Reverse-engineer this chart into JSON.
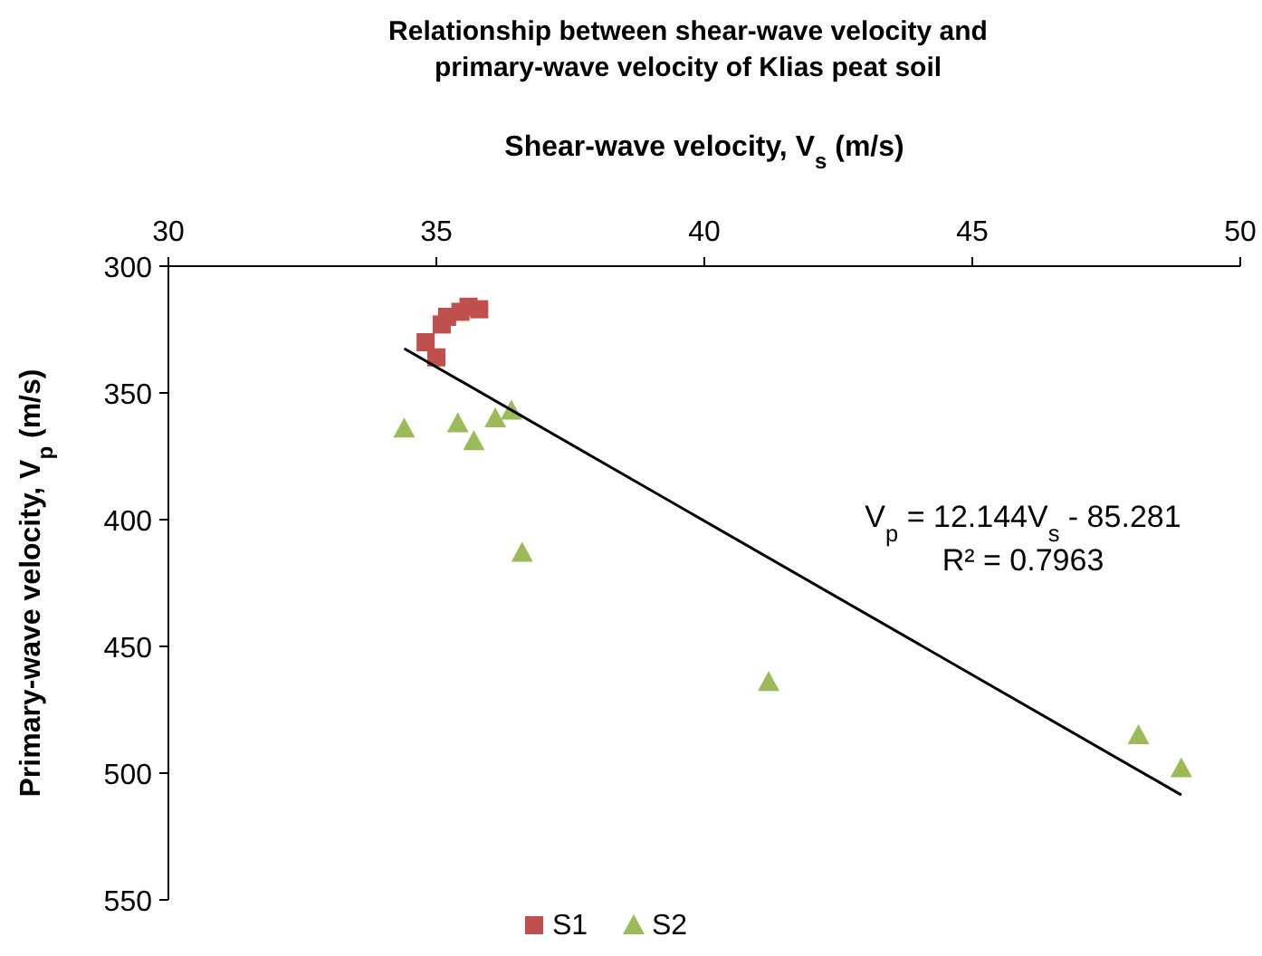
{
  "chart_data": {
    "type": "scatter",
    "title": "Relationship between shear-wave velocity and\nprimary-wave velocity of Klias peat soil",
    "xlabel": "Shear-wave velocity, V$_{s}$ (m/s)",
    "ylabel": "Primary-wave velocity, V$_{p}$ (m/s)",
    "xlim": [
      30,
      50
    ],
    "xticks": [
      30,
      35,
      40,
      45,
      50
    ],
    "ylim": [
      550,
      300
    ],
    "yticks": [
      300,
      350,
      400,
      450,
      500,
      550
    ],
    "grid": false,
    "legend": "bottom",
    "series": [
      {
        "name": "S1",
        "color": "#c0504d",
        "marker": "square",
        "x": [
          34.8,
          35.0,
          35.1,
          35.2,
          35.45,
          35.6,
          35.8
        ],
        "values": [
          330,
          336,
          323,
          320,
          318,
          316,
          317
        ]
      },
      {
        "name": "S2",
        "color": "#9bbb59",
        "marker": "triangle",
        "x": [
          34.4,
          35.4,
          35.7,
          36.1,
          36.4,
          36.6,
          41.2,
          48.1,
          48.9
        ],
        "values": [
          364,
          362,
          369,
          360,
          357,
          413,
          464,
          485,
          498
        ]
      },
      {
        "type": "line",
        "color": "#000000",
        "marker": "none",
        "x": [
          34.4,
          48.9
        ],
        "values": [
          332.5,
          508.6
        ]
      }
    ],
    "annotations": [
      "V$_{p}$ = 12.144V$_{s}$ - 85.281",
      "R² = 0.7963"
    ]
  }
}
